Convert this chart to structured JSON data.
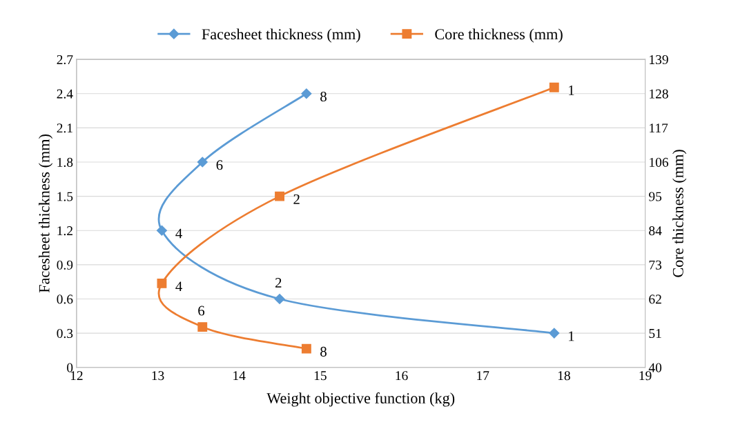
{
  "chart_data": {
    "type": "line",
    "xlabel": "Weight objective function (kg)",
    "ylabel": "Facesheet thickness (mm)",
    "y2label": "Core thickness (mm)",
    "series": [
      {
        "name": "Facesheet thickness (mm)",
        "color": "#5b9bd5",
        "marker": "diamond",
        "x": [
          17.88,
          14.5,
          13.05,
          13.55,
          14.83
        ],
        "values": [
          0.3,
          0.6,
          1.2,
          1.8,
          2.4
        ]
      },
      {
        "name": "Core thickness (mm)",
        "color": "#ed7d31",
        "marker": "square",
        "axis": "y2",
        "x": [
          17.88,
          14.5,
          13.05,
          13.55,
          14.83
        ],
        "values": [
          130,
          95,
          67,
          53,
          46
        ]
      }
    ],
    "annotations": [
      {
        "text": "1",
        "x": 17.88,
        "y": 0.3
      },
      {
        "text": "2",
        "x": 14.5,
        "y": 0.6
      },
      {
        "text": "4",
        "x": 13.05,
        "y": 1.2
      },
      {
        "text": "6",
        "x": 13.55,
        "y": 1.8
      },
      {
        "text": "8",
        "x": 14.83,
        "y": 2.4
      },
      {
        "text": "1",
        "x": 17.88,
        "y": 2.455
      },
      {
        "text": "2",
        "x": 14.5,
        "y": 1.5
      },
      {
        "text": "4",
        "x": 13.05,
        "y": 0.736
      },
      {
        "text": "6",
        "x": 13.55,
        "y": 0.355
      },
      {
        "text": "8",
        "x": 14.83,
        "y": 0.164
      }
    ],
    "xlim": [
      12,
      19
    ],
    "xticks": [
      12,
      13,
      14,
      15,
      16,
      17,
      18,
      19
    ],
    "ylim": [
      0,
      2.7
    ],
    "yticks": [
      0,
      0.3,
      0.6,
      0.9,
      1.2,
      1.5,
      1.8,
      2.1,
      2.4,
      2.7
    ],
    "y2lim": [
      40,
      139
    ],
    "y2ticks": [
      40,
      51,
      62,
      73,
      84,
      95,
      106,
      117,
      128,
      139
    ],
    "grid": "y",
    "legend": "top"
  }
}
